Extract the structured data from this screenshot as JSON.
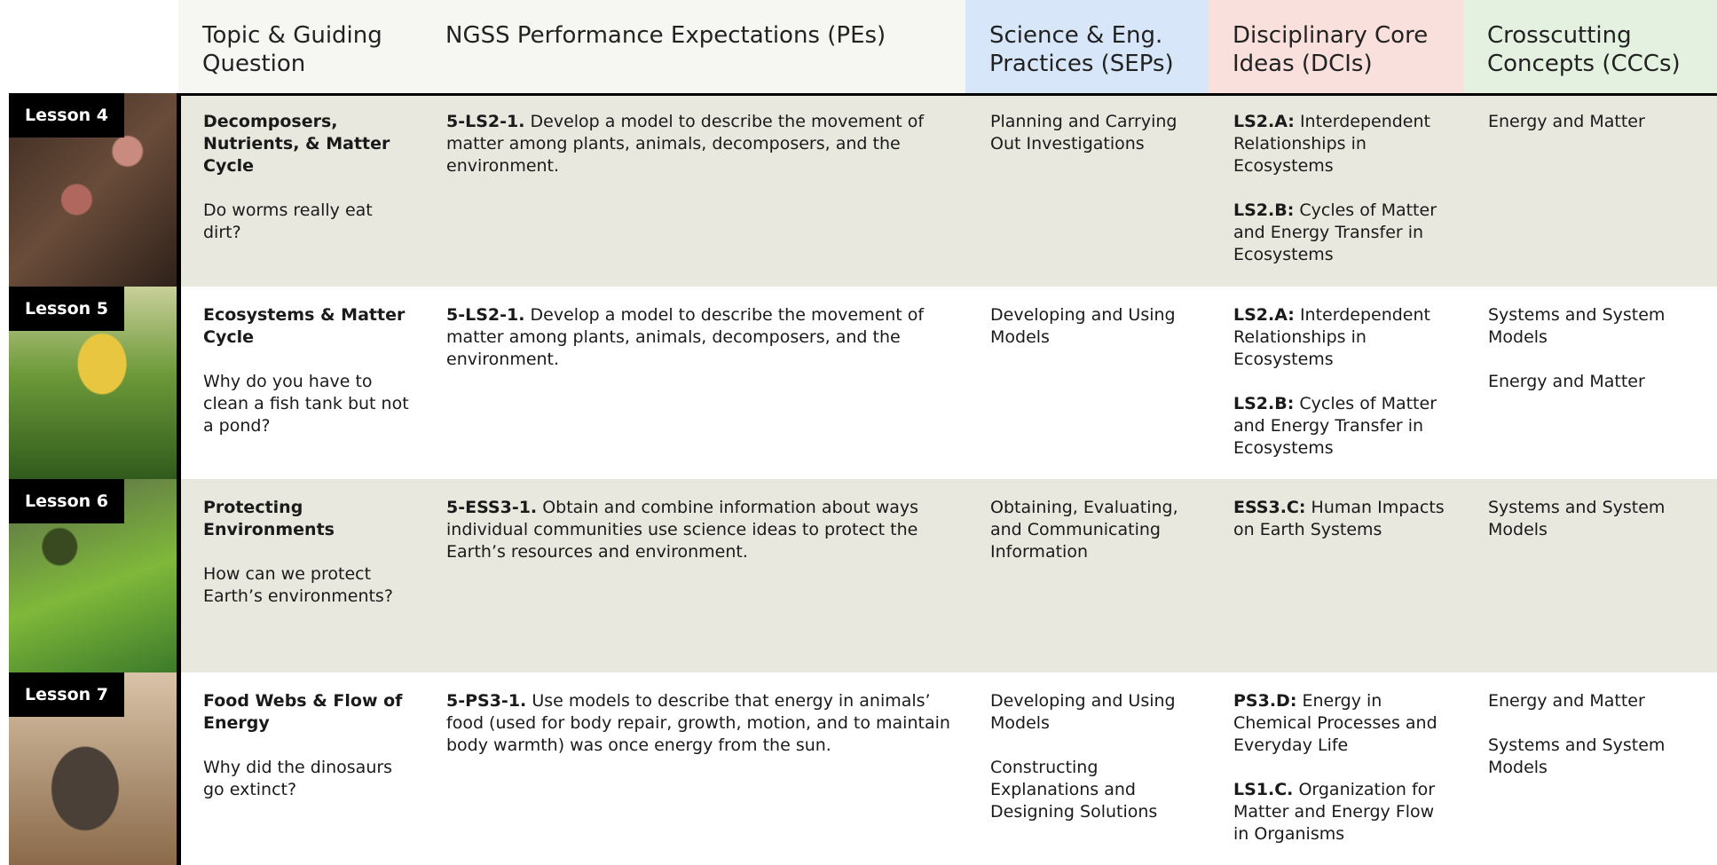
{
  "header": {
    "columns": [
      "Topic & Guiding Question",
      "NGSS Performance Expectations (PEs)",
      "Science & Eng. Practices (SEPs)",
      "Disciplinary Core Ideas (DCIs)",
      "Crosscutting Concepts (CCCs)"
    ]
  },
  "rows": [
    {
      "lesson": "Lesson 4",
      "topic": "Decomposers, Nutrients, & Matter Cycle",
      "question": "Do worms really eat dirt?",
      "pe": {
        "code": "5-LS2-1.",
        "text": "Develop a model to describe the movement of matter among plants, animals, decomposers, and the environment."
      },
      "seps": [
        "Planning and Carrying Out Investigations"
      ],
      "dcis": [
        {
          "code": "LS2.A:",
          "text": "Interdependent Relationships in Ecosystems"
        },
        {
          "code": "LS2.B:",
          "text": "Cycles of Matter and Energy Transfer in Ecosystems"
        }
      ],
      "cccs": [
        "Energy and Matter"
      ]
    },
    {
      "lesson": "Lesson 5",
      "topic": "Ecosystems & Matter Cycle",
      "question": "Why do you have to clean a fish tank but not a pond?",
      "pe": {
        "code": "5-LS2-1.",
        "text": "Develop a model to describe the movement of matter among plants, animals, decomposers, and the environment."
      },
      "seps": [
        "Developing and Using Models"
      ],
      "dcis": [
        {
          "code": "LS2.A:",
          "text": "Interdependent Relationships in Ecosystems"
        },
        {
          "code": "LS2.B:",
          "text": "Cycles of Matter and Energy Transfer in Ecosystems"
        }
      ],
      "cccs": [
        "Systems and System Models",
        "Energy and Matter"
      ]
    },
    {
      "lesson": "Lesson 6",
      "topic": "Protecting Environments",
      "question": "How can we protect Earth’s environments?",
      "pe": {
        "code": "5-ESS3-1.",
        "text": "Obtain and combine information about ways individual communities use science ideas to protect the Earth’s resources and environment."
      },
      "seps": [
        "Obtaining, Evaluating, and Communicating Information"
      ],
      "dcis": [
        {
          "code": "ESS3.C:",
          "text": "Human Impacts on Earth Systems"
        }
      ],
      "cccs": [
        "Systems and System Models"
      ]
    },
    {
      "lesson": "Lesson 7",
      "topic": "Food Webs & Flow of Energy",
      "question": "Why did the dinosaurs go extinct?",
      "pe": {
        "code": "5-PS3-1.",
        "text": "Use models to describe that energy in animals’ food (used for body repair, growth, motion, and to maintain body warmth) was once energy from the sun."
      },
      "seps": [
        "Developing and Using Models",
        "Constructing Explanations and Designing Solutions"
      ],
      "dcis": [
        {
          "code": "PS3.D:",
          "text": "Energy in Chemical Processes and Everyday Life"
        },
        {
          "code": "LS1.C.",
          "text": "Organization for Matter and Energy Flow in Organisms"
        }
      ],
      "cccs": [
        "Energy and Matter",
        "Systems and System Models"
      ]
    }
  ]
}
